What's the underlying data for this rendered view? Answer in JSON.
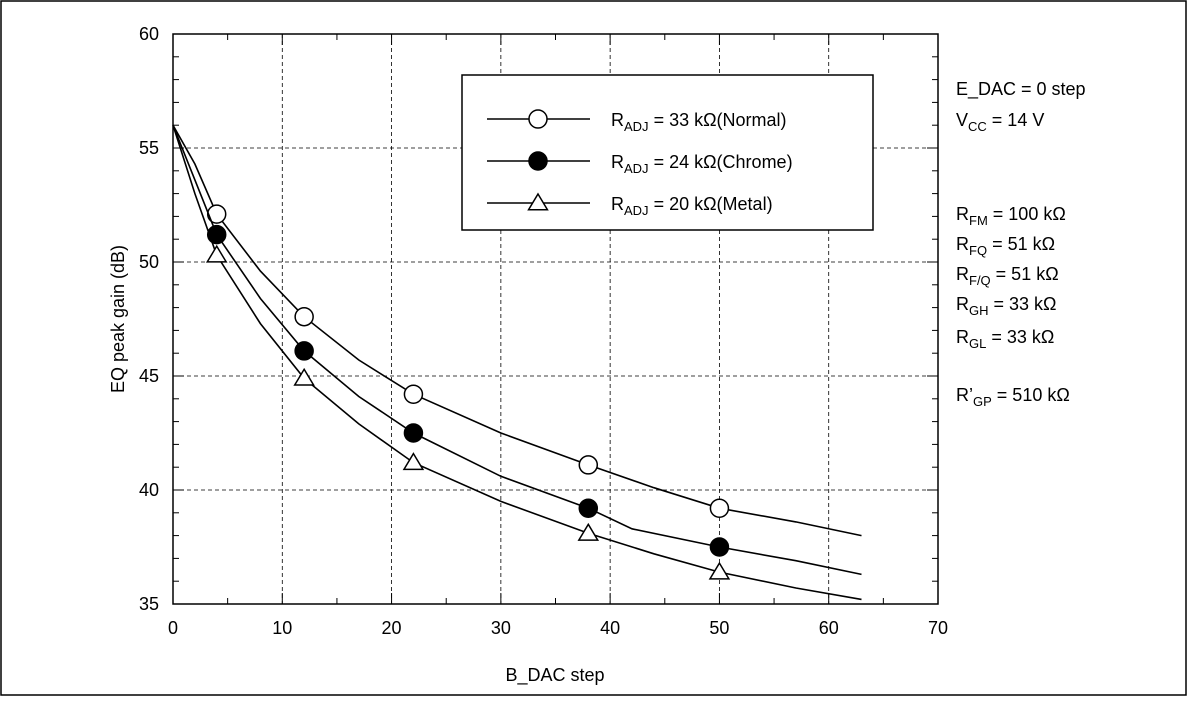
{
  "chart_data": {
    "type": "line",
    "xlabel": "B_DAC step",
    "ylabel": "EQ peak gain (dB)",
    "xlim": [
      0,
      70
    ],
    "ylim": [
      35,
      60
    ],
    "x_ticks": [
      0,
      10,
      20,
      30,
      40,
      50,
      60,
      70
    ],
    "y_ticks": [
      35,
      40,
      45,
      50,
      55,
      60
    ],
    "grid": true,
    "legend_position": "top-center",
    "series": [
      {
        "legend": {
          "main": "R",
          "sub": "ADJ",
          "rest": " = 33 kΩ(Normal)"
        },
        "marker": "open-circle",
        "points": [
          [
            4,
            52.1
          ],
          [
            12,
            47.6
          ],
          [
            22,
            44.2
          ],
          [
            38,
            41.1
          ],
          [
            50,
            39.2
          ]
        ],
        "curve": [
          [
            0,
            56.0
          ],
          [
            2,
            54.3
          ],
          [
            4,
            52.1
          ],
          [
            8,
            49.6
          ],
          [
            12,
            47.6
          ],
          [
            17,
            45.7
          ],
          [
            22,
            44.2
          ],
          [
            30,
            42.5
          ],
          [
            38,
            41.1
          ],
          [
            44,
            40.1
          ],
          [
            50,
            39.2
          ],
          [
            57,
            38.6
          ],
          [
            63,
            38.0
          ]
        ]
      },
      {
        "legend": {
          "main": "R",
          "sub": "ADJ",
          "rest": " = 24 kΩ(Chrome)"
        },
        "marker": "filled-circle",
        "points": [
          [
            4,
            51.2
          ],
          [
            12,
            46.1
          ],
          [
            22,
            42.5
          ],
          [
            38,
            39.2
          ],
          [
            50,
            37.5
          ]
        ],
        "curve": [
          [
            0,
            56.0
          ],
          [
            2,
            53.6
          ],
          [
            4,
            51.2
          ],
          [
            8,
            48.4
          ],
          [
            12,
            46.1
          ],
          [
            17,
            44.1
          ],
          [
            22,
            42.5
          ],
          [
            30,
            40.6
          ],
          [
            38,
            39.2
          ],
          [
            42,
            38.3
          ],
          [
            50,
            37.5
          ],
          [
            57,
            36.9
          ],
          [
            63,
            36.3
          ]
        ]
      },
      {
        "legend": {
          "main": "R",
          "sub": "ADJ",
          "rest": " = 20 kΩ(Metal)"
        },
        "marker": "open-triangle",
        "points": [
          [
            4,
            50.3
          ],
          [
            12,
            44.9
          ],
          [
            22,
            41.2
          ],
          [
            38,
            38.1
          ],
          [
            50,
            36.4
          ]
        ],
        "curve": [
          [
            0,
            56.0
          ],
          [
            2,
            53.0
          ],
          [
            4,
            50.3
          ],
          [
            8,
            47.3
          ],
          [
            12,
            44.9
          ],
          [
            17,
            42.9
          ],
          [
            22,
            41.2
          ],
          [
            30,
            39.5
          ],
          [
            38,
            38.1
          ],
          [
            44,
            37.2
          ],
          [
            50,
            36.4
          ],
          [
            57,
            35.7
          ],
          [
            63,
            35.2
          ]
        ]
      }
    ],
    "annotations": [
      [
        {
          "t": "E_DAC = 0 step"
        }
      ],
      [
        {
          "t": "V"
        },
        {
          "t": "CC",
          "sub": true
        },
        {
          "t": " = 14 V"
        }
      ],
      [
        {
          "t": "R"
        },
        {
          "t": "FM",
          "sub": true
        },
        {
          "t": " = 100 kΩ"
        }
      ],
      [
        {
          "t": "R"
        },
        {
          "t": "FQ",
          "sub": true
        },
        {
          "t": " = 51 kΩ"
        }
      ],
      [
        {
          "t": "R"
        },
        {
          "t": "F/Q",
          "sub": true
        },
        {
          "t": " = 51 kΩ"
        }
      ],
      [
        {
          "t": "R"
        },
        {
          "t": "GH",
          "sub": true
        },
        {
          "t": " = 33 kΩ"
        }
      ],
      [
        {
          "t": "R"
        },
        {
          "t": "GL",
          "sub": true
        },
        {
          "t": " = 33 kΩ"
        }
      ],
      [
        {
          "t": "R’"
        },
        {
          "t": "GP",
          "sub": true
        },
        {
          "t": " = 510 kΩ"
        }
      ]
    ]
  }
}
